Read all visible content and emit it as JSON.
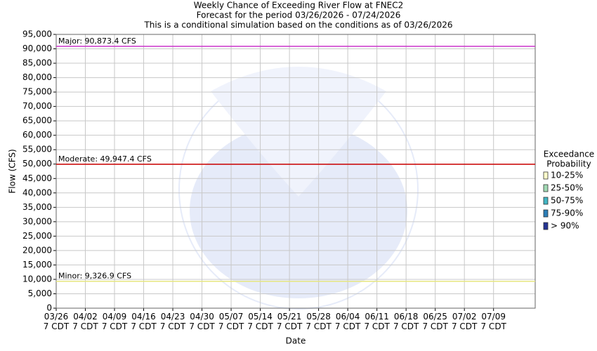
{
  "chart_data": {
    "type": "threshold",
    "title": [
      "Weekly Chance of Exceeding River Flow at FNEC2",
      "Forecast for the period 03/26/2026 - 07/24/2026",
      "This is a conditional simulation based on the conditions as of 03/26/2026"
    ],
    "y_label": "Flow (CFS)",
    "x_label": "Date",
    "ylim": [
      0,
      95000
    ],
    "yticks": [
      0,
      {
        "value": 5000,
        "label": "5,000"
      },
      {
        "value": 10000,
        "label": "10,000"
      },
      {
        "value": 15000,
        "label": "15,000"
      },
      {
        "value": 20000,
        "label": "20,000"
      },
      {
        "value": 25000,
        "label": "25,000"
      },
      {
        "value": 30000,
        "label": "30,000"
      },
      {
        "value": 35000,
        "label": "35,000"
      },
      {
        "value": 40000,
        "label": "40,000"
      },
      {
        "value": 45000,
        "label": "45,000"
      },
      {
        "value": 50000,
        "label": "50,000"
      },
      {
        "value": 55000,
        "label": "55,000"
      },
      {
        "value": 60000,
        "label": "60,000"
      },
      {
        "value": 65000,
        "label": "65,000"
      },
      {
        "value": 70000,
        "label": "70,000"
      },
      {
        "value": 75000,
        "label": "75,000"
      },
      {
        "value": 80000,
        "label": "80,000"
      },
      {
        "value": 85000,
        "label": "85,000"
      },
      {
        "value": 90000,
        "label": "90,000"
      },
      {
        "value": 95000,
        "label": "95,000"
      }
    ],
    "xlim": [
      0,
      115
    ],
    "xticks": [
      {
        "value": 0,
        "label": "03/26 7 CDT"
      },
      {
        "value": 7,
        "label": "04/02 7 CDT"
      },
      {
        "value": 14,
        "label": "04/09 7 CDT"
      },
      {
        "value": 21,
        "label": "04/16 7 CDT"
      },
      {
        "value": 28,
        "label": "04/23 7 CDT"
      },
      {
        "value": 35,
        "label": "04/30 7 CDT"
      },
      {
        "value": 42,
        "label": "05/07 7 CDT"
      },
      {
        "value": 49,
        "label": "05/14 7 CDT"
      },
      {
        "value": 56,
        "label": "05/21 7 CDT"
      },
      {
        "value": 63,
        "label": "05/28 7 CDT"
      },
      {
        "value": 70,
        "label": "06/04 7 CDT"
      },
      {
        "value": 77,
        "label": "06/11 7 CDT"
      },
      {
        "value": 84,
        "label": "06/18 7 CDT"
      },
      {
        "value": 91,
        "label": "06/25 7 CDT"
      },
      {
        "value": 98,
        "label": "07/02 7 CDT"
      },
      {
        "value": 105,
        "label": "07/09 7 CDT"
      }
    ],
    "grid": true,
    "thresholds": [
      {
        "value": 90873.4,
        "label": "Major: 90,873.4 CFS",
        "color": "#cc33cc"
      },
      {
        "value": 49947.4,
        "label": "Moderate: 49,947.4 CFS",
        "color": "#cc0000"
      },
      {
        "value": 9326.9,
        "label": "Minor: 9,326.9 CFS",
        "color": "#e6e680"
      }
    ],
    "legend_title": [
      "Exceedance",
      "Probability"
    ],
    "legend": [
      {
        "name": "10-25%",
        "color": "#ffffcc"
      },
      {
        "name": "25-50%",
        "color": "#a1dab4"
      },
      {
        "name": "50-75%",
        "color": "#41b6c4"
      },
      {
        "name": "75-90%",
        "color": "#2c7fb8"
      },
      {
        "name": "> 90%",
        "color": "#253494"
      }
    ]
  }
}
